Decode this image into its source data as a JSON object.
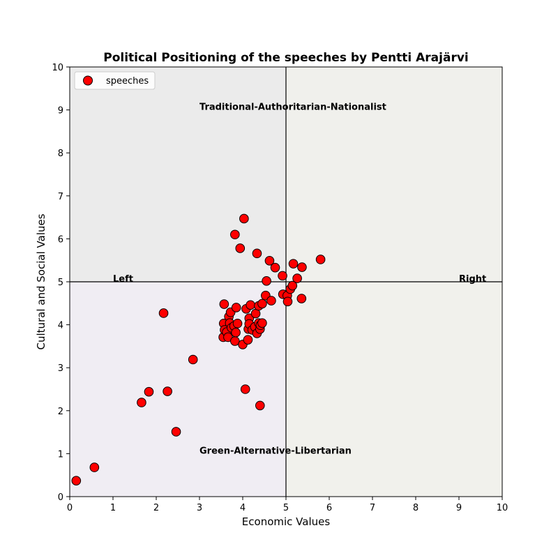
{
  "chart_data": {
    "type": "scatter",
    "title": "Political Positioning of the speeches by Pentti Arajärvi",
    "xlabel": "Economic Values",
    "ylabel": "Cultural and Social Values",
    "xlim": [
      0,
      10
    ],
    "ylim": [
      0,
      10
    ],
    "xticks": [
      "0",
      "1",
      "2",
      "3",
      "4",
      "5",
      "6",
      "7",
      "8",
      "9",
      "10"
    ],
    "yticks": [
      "0",
      "1",
      "2",
      "3",
      "4",
      "5",
      "6",
      "7",
      "8",
      "9",
      "10"
    ],
    "grid": false,
    "legend_position": "top-left",
    "quadrant_divider": {
      "x": 5,
      "y": 5
    },
    "quadrant_colors": {
      "top_left": "#ebebeb",
      "top_right": "#f0f0ec",
      "bottom_left": "#f0edf3",
      "bottom_right": "#f1f1ec"
    },
    "annotations": [
      {
        "text": "Traditional-Authoritarian-Nationalist",
        "x": 3.0,
        "y": 9.0
      },
      {
        "text": "Green-Alternative-Libertarian",
        "x": 3.0,
        "y": 1.0
      },
      {
        "text": "Left",
        "x": 1.0,
        "y": 5.0
      },
      {
        "text": "Right",
        "x": 9.0,
        "y": 5.0
      }
    ],
    "series": [
      {
        "name": "speeches",
        "color": "#ff0000",
        "edge_color": "#000000",
        "points": [
          {
            "x": 0.15,
            "y": 0.37
          },
          {
            "x": 0.57,
            "y": 0.68
          },
          {
            "x": 1.66,
            "y": 2.19
          },
          {
            "x": 1.83,
            "y": 2.44
          },
          {
            "x": 2.17,
            "y": 4.27
          },
          {
            "x": 2.26,
            "y": 2.45
          },
          {
            "x": 2.46,
            "y": 1.51
          },
          {
            "x": 2.85,
            "y": 3.19
          },
          {
            "x": 3.55,
            "y": 3.71
          },
          {
            "x": 3.56,
            "y": 4.03
          },
          {
            "x": 3.57,
            "y": 4.48
          },
          {
            "x": 3.58,
            "y": 3.88
          },
          {
            "x": 3.63,
            "y": 3.83
          },
          {
            "x": 3.66,
            "y": 3.71
          },
          {
            "x": 3.68,
            "y": 4.19
          },
          {
            "x": 3.7,
            "y": 4.04
          },
          {
            "x": 3.72,
            "y": 4.29
          },
          {
            "x": 3.74,
            "y": 3.93
          },
          {
            "x": 3.8,
            "y": 3.97
          },
          {
            "x": 3.82,
            "y": 3.62
          },
          {
            "x": 3.82,
            "y": 6.1
          },
          {
            "x": 3.84,
            "y": 3.82
          },
          {
            "x": 3.85,
            "y": 4.4
          },
          {
            "x": 3.88,
            "y": 4.03
          },
          {
            "x": 3.94,
            "y": 5.78
          },
          {
            "x": 4.0,
            "y": 3.54
          },
          {
            "x": 4.03,
            "y": 6.47
          },
          {
            "x": 4.06,
            "y": 2.5
          },
          {
            "x": 4.08,
            "y": 4.37
          },
          {
            "x": 4.12,
            "y": 3.65
          },
          {
            "x": 4.13,
            "y": 3.9
          },
          {
            "x": 4.15,
            "y": 4.15
          },
          {
            "x": 4.15,
            "y": 4.02
          },
          {
            "x": 4.18,
            "y": 4.46
          },
          {
            "x": 4.22,
            "y": 3.88
          },
          {
            "x": 4.28,
            "y": 3.95
          },
          {
            "x": 4.3,
            "y": 4.26
          },
          {
            "x": 4.33,
            "y": 5.66
          },
          {
            "x": 4.33,
            "y": 3.8
          },
          {
            "x": 4.37,
            "y": 4.44
          },
          {
            "x": 4.37,
            "y": 4.04
          },
          {
            "x": 4.4,
            "y": 2.12
          },
          {
            "x": 4.4,
            "y": 3.9
          },
          {
            "x": 4.41,
            "y": 3.99
          },
          {
            "x": 4.45,
            "y": 4.04
          },
          {
            "x": 4.45,
            "y": 4.49
          },
          {
            "x": 4.53,
            "y": 4.68
          },
          {
            "x": 4.55,
            "y": 5.02
          },
          {
            "x": 4.62,
            "y": 5.49
          },
          {
            "x": 4.66,
            "y": 4.56
          },
          {
            "x": 4.75,
            "y": 5.33
          },
          {
            "x": 4.92,
            "y": 5.14
          },
          {
            "x": 4.93,
            "y": 4.71
          },
          {
            "x": 5.03,
            "y": 4.68
          },
          {
            "x": 5.04,
            "y": 4.54
          },
          {
            "x": 5.1,
            "y": 4.83
          },
          {
            "x": 5.15,
            "y": 4.91
          },
          {
            "x": 5.17,
            "y": 5.42
          },
          {
            "x": 5.26,
            "y": 5.08
          },
          {
            "x": 5.36,
            "y": 4.61
          },
          {
            "x": 5.37,
            "y": 5.34
          },
          {
            "x": 5.8,
            "y": 5.52
          }
        ]
      }
    ]
  }
}
